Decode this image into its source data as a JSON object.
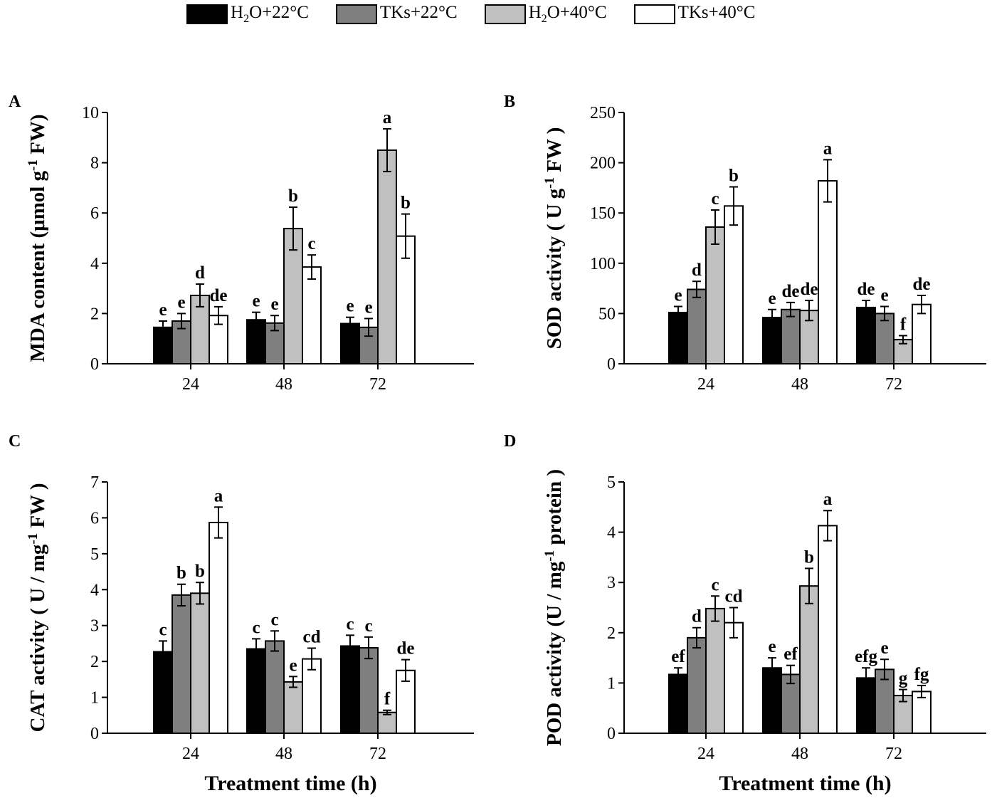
{
  "legend": [
    {
      "label_parts": [
        "H",
        "2",
        "O+22°C"
      ],
      "color": "#000000"
    },
    {
      "label_parts": [
        "TKs+22°C",
        "",
        ""
      ],
      "color": "#7f7f7f"
    },
    {
      "label_parts": [
        "H",
        "2",
        "O+40°C"
      ],
      "color": "#c0c0c0"
    },
    {
      "label_parts": [
        "TKs+40°C",
        "",
        ""
      ],
      "color": "#ffffff"
    }
  ],
  "chart_data": [
    {
      "panel": "A",
      "type": "bar",
      "categories": [
        "24",
        "48",
        "72"
      ],
      "ylabel_parts": [
        "MDA content (μmol g",
        "-1",
        " FW)"
      ],
      "ylim": [
        0,
        10
      ],
      "yticks": [
        0,
        2,
        4,
        6,
        8,
        10
      ],
      "xlabel": "",
      "series": [
        {
          "name": "H2O+22°C",
          "values": [
            1.45,
            1.75,
            1.6
          ],
          "errors": [
            0.25,
            0.3,
            0.25
          ],
          "letters": [
            "e",
            "e",
            "e"
          ]
        },
        {
          "name": "TKs+22°C",
          "values": [
            1.7,
            1.62,
            1.45
          ],
          "errors": [
            0.3,
            0.3,
            0.35
          ],
          "letters": [
            "e",
            "e",
            "e"
          ]
        },
        {
          "name": "H2O+40°C",
          "values": [
            2.72,
            5.38,
            8.5
          ],
          "errors": [
            0.45,
            0.85,
            0.85
          ],
          "letters": [
            "d",
            "b",
            "a"
          ]
        },
        {
          "name": "TKs+40°C",
          "values": [
            1.92,
            3.85,
            5.08
          ],
          "errors": [
            0.35,
            0.48,
            0.88
          ],
          "letters": [
            "de",
            "c",
            "b"
          ]
        }
      ]
    },
    {
      "panel": "B",
      "type": "bar",
      "categories": [
        "24",
        "48",
        "72"
      ],
      "ylabel_parts": [
        "SOD activity ( U g",
        "-1",
        " FW )"
      ],
      "ylim": [
        0,
        250
      ],
      "yticks": [
        0,
        50,
        100,
        150,
        200,
        250
      ],
      "xlabel": "",
      "series": [
        {
          "name": "H2O+22°C",
          "values": [
            51,
            46,
            56
          ],
          "errors": [
            6,
            8,
            7
          ],
          "letters": [
            "e",
            "e",
            "de"
          ]
        },
        {
          "name": "TKs+22°C",
          "values": [
            74,
            54,
            50
          ],
          "errors": [
            8,
            7,
            7
          ],
          "letters": [
            "d",
            "de",
            "e"
          ]
        },
        {
          "name": "H2O+40°C",
          "values": [
            136,
            53,
            24
          ],
          "errors": [
            17,
            10,
            4
          ],
          "letters": [
            "c",
            "de",
            "f"
          ]
        },
        {
          "name": "TKs+40°C",
          "values": [
            157,
            182,
            59
          ],
          "errors": [
            19,
            21,
            9
          ],
          "letters": [
            "b",
            "a",
            "de"
          ]
        }
      ]
    },
    {
      "panel": "C",
      "type": "bar",
      "categories": [
        "24",
        "48",
        "72"
      ],
      "ylabel_parts": [
        "CAT activity ( U / mg",
        "-1",
        " FW )"
      ],
      "ylim": [
        0,
        7
      ],
      "yticks": [
        0,
        1,
        2,
        3,
        4,
        5,
        6,
        7
      ],
      "xlabel": "Treatment time (h)",
      "series": [
        {
          "name": "H2O+22°C",
          "values": [
            2.27,
            2.35,
            2.43
          ],
          "errors": [
            0.3,
            0.28,
            0.3
          ],
          "letters": [
            "c",
            "c",
            "c"
          ]
        },
        {
          "name": "TKs+22°C",
          "values": [
            3.85,
            2.57,
            2.38
          ],
          "errors": [
            0.3,
            0.28,
            0.3
          ],
          "letters": [
            "b",
            "c",
            "c"
          ]
        },
        {
          "name": "H2O+40°C",
          "values": [
            3.9,
            1.43,
            0.58
          ],
          "errors": [
            0.3,
            0.15,
            0.06
          ],
          "letters": [
            "b",
            "e",
            "f"
          ]
        },
        {
          "name": "TKs+40°C",
          "values": [
            5.87,
            2.07,
            1.75
          ],
          "errors": [
            0.43,
            0.3,
            0.3
          ],
          "letters": [
            "a",
            "cd",
            "de"
          ]
        }
      ]
    },
    {
      "panel": "D",
      "type": "bar",
      "categories": [
        "24",
        "48",
        "72"
      ],
      "ylabel_parts": [
        "POD activity (U / mg",
        "-1",
        " protein )"
      ],
      "ylim": [
        0,
        5
      ],
      "yticks": [
        0,
        1,
        2,
        3,
        4,
        5
      ],
      "xlabel": "Treatment time (h)",
      "series": [
        {
          "name": "H2O+22°C",
          "values": [
            1.17,
            1.3,
            1.1
          ],
          "errors": [
            0.13,
            0.2,
            0.2
          ],
          "letters": [
            "ef",
            "e",
            "efg"
          ]
        },
        {
          "name": "TKs+22°C",
          "values": [
            1.9,
            1.17,
            1.27
          ],
          "errors": [
            0.2,
            0.18,
            0.2
          ],
          "letters": [
            "d",
            "ef",
            "e"
          ]
        },
        {
          "name": "H2O+40°C",
          "values": [
            2.48,
            2.93,
            0.75
          ],
          "errors": [
            0.25,
            0.35,
            0.12
          ],
          "letters": [
            "c",
            "b",
            "g"
          ]
        },
        {
          "name": "TKs+40°C",
          "values": [
            2.2,
            4.13,
            0.83
          ],
          "errors": [
            0.3,
            0.3,
            0.12
          ],
          "letters": [
            "cd",
            "a",
            "fg"
          ]
        }
      ]
    }
  ]
}
